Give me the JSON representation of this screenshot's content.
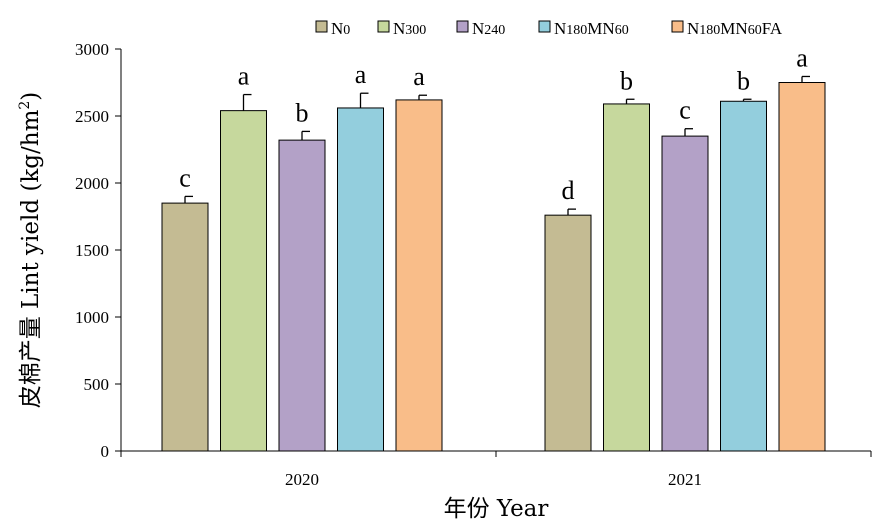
{
  "chart_data": {
    "type": "bar",
    "xlabel": "年份 Year",
    "ylabel": "皮棉产量 Lint yield (kg/hm²)",
    "ylabel_parts": {
      "prefix": "皮棉产量 Lint yield (kg/hm",
      "superscript": "2",
      "suffix": ")"
    },
    "ylim": [
      0,
      3000
    ],
    "yticks": [
      0,
      500,
      1000,
      1500,
      2000,
      2500,
      3000
    ],
    "categories": [
      "2020",
      "2021"
    ],
    "legend_position": "top",
    "series": [
      {
        "name": "N0",
        "legend_parts": [
          [
            "N",
            ""
          ],
          [
            "0",
            "sub"
          ]
        ],
        "color": "#c4bb93",
        "values": [
          1850,
          1760
        ],
        "errors": [
          50,
          45
        ],
        "significance": [
          "c",
          "d"
        ]
      },
      {
        "name": "N300",
        "legend_parts": [
          [
            "N",
            ""
          ],
          [
            "300",
            "sub"
          ]
        ],
        "color": "#c6d89d",
        "values": [
          2540,
          2590
        ],
        "errors": [
          120,
          35
        ],
        "significance": [
          "a",
          "b"
        ]
      },
      {
        "name": "N240",
        "legend_parts": [
          [
            "N",
            ""
          ],
          [
            "240",
            "sub"
          ]
        ],
        "color": "#b3a1c7",
        "values": [
          2320,
          2350
        ],
        "errors": [
          65,
          55
        ],
        "significance": [
          "b",
          "c"
        ]
      },
      {
        "name": "N180MN60",
        "legend_parts": [
          [
            "N",
            ""
          ],
          [
            "180",
            "sub"
          ],
          [
            "MN",
            ""
          ],
          [
            "60",
            "sub"
          ]
        ],
        "color": "#93cedd",
        "values": [
          2560,
          2610
        ],
        "errors": [
          110,
          15
        ],
        "significance": [
          "a",
          "b"
        ]
      },
      {
        "name": "N180MN60FA",
        "legend_parts": [
          [
            "N",
            ""
          ],
          [
            "180",
            "sub"
          ],
          [
            "MN",
            ""
          ],
          [
            "60",
            "sub"
          ],
          [
            "FA",
            ""
          ]
        ],
        "color": "#f9bd89",
        "values": [
          2620,
          2750
        ],
        "errors": [
          35,
          45
        ],
        "significance": [
          "a",
          "a"
        ]
      }
    ]
  }
}
